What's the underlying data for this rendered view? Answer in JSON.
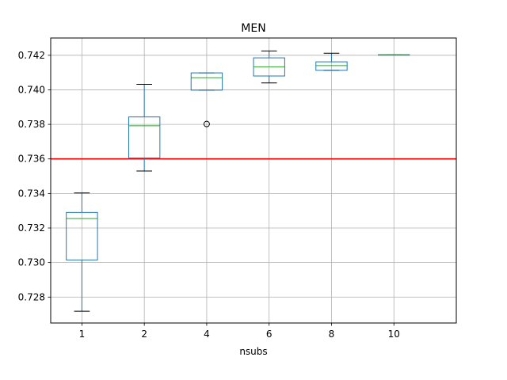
{
  "chart_data": {
    "type": "boxplot",
    "title": "MEN",
    "xlabel": "nsubs",
    "ylabel": "",
    "categories": [
      "1",
      "2",
      "4",
      "6",
      "8",
      "10"
    ],
    "ylim": [
      0.7265,
      0.743
    ],
    "yticks": [
      0.728,
      0.73,
      0.732,
      0.734,
      0.736,
      0.738,
      0.74,
      0.742
    ],
    "ytick_labels": [
      "0.728",
      "0.730",
      "0.732",
      "0.734",
      "0.736",
      "0.738",
      "0.740",
      "0.742"
    ],
    "grid": true,
    "box_color": "#1f77b4",
    "median_color": "#2ca02c",
    "reference_line": {
      "y": 0.736,
      "color": "#ff0000"
    },
    "boxes": [
      {
        "category": "1",
        "whisker_low": 0.72718,
        "q1": 0.73015,
        "median": 0.73255,
        "q3": 0.7329,
        "whisker_high": 0.73403,
        "outliers": []
      },
      {
        "category": "2",
        "whisker_low": 0.7353,
        "q1": 0.73605,
        "median": 0.73792,
        "q3": 0.73843,
        "whisker_high": 0.74032,
        "outliers": []
      },
      {
        "category": "4",
        "whisker_low": 0.73998,
        "q1": 0.73998,
        "median": 0.7407,
        "q3": 0.74098,
        "whisker_high": 0.74098,
        "outliers": [
          0.73802
        ]
      },
      {
        "category": "6",
        "whisker_low": 0.7404,
        "q1": 0.7408,
        "median": 0.74133,
        "q3": 0.74185,
        "whisker_high": 0.74225,
        "outliers": []
      },
      {
        "category": "8",
        "whisker_low": 0.74113,
        "q1": 0.74113,
        "median": 0.7414,
        "q3": 0.74162,
        "whisker_high": 0.74212,
        "outliers": []
      },
      {
        "category": "10",
        "whisker_low": 0.74203,
        "q1": 0.74203,
        "median": 0.74203,
        "q3": 0.74203,
        "whisker_high": 0.74203,
        "outliers": []
      }
    ]
  }
}
